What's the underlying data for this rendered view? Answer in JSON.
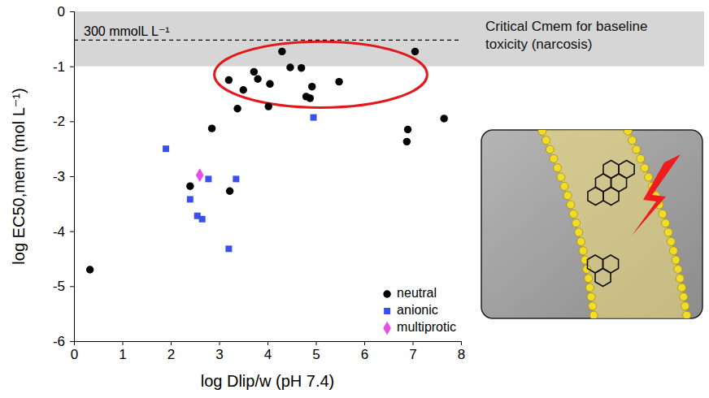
{
  "chart_data": {
    "type": "scatter",
    "x_label": "log Dlip/w (pH 7.4)",
    "y_label": "log EC50,mem (mol L⁻¹)",
    "xlim": [
      0,
      8
    ],
    "xticks": [
      0,
      1,
      2,
      3,
      4,
      5,
      6,
      7,
      8
    ],
    "ylim": [
      -6,
      0
    ],
    "yticks": [
      -6,
      -5,
      -4,
      -3,
      -2,
      -1,
      0
    ],
    "legend": "lower right",
    "series": [
      {
        "name": "neutral",
        "color": "#000000",
        "marker": "circle",
        "x": [
          0.33,
          2.4,
          2.85,
          3.2,
          3.22,
          3.38,
          3.5,
          3.72,
          3.8,
          4.05,
          4.02,
          4.3,
          4.47,
          4.7,
          4.8,
          4.88,
          4.92,
          5.48,
          6.88,
          6.9,
          7.05,
          7.65
        ],
        "values": [
          -4.7,
          -3.18,
          -2.13,
          -1.25,
          -3.27,
          -1.77,
          -1.43,
          -1.1,
          -1.23,
          -1.32,
          -1.73,
          -0.73,
          -1.02,
          -1.03,
          -1.55,
          -1.58,
          -1.37,
          -1.28,
          -2.37,
          -2.15,
          -0.73,
          -1.95
        ]
      },
      {
        "name": "anionic",
        "color": "#3b50e8",
        "marker": "square",
        "x": [
          1.9,
          2.4,
          2.55,
          2.65,
          2.78,
          3.2,
          3.35,
          4.95
        ],
        "values": [
          -2.5,
          -3.42,
          -3.72,
          -3.78,
          -3.05,
          -4.32,
          -3.05,
          -1.93
        ]
      },
      {
        "name": "multiprotic",
        "color": "#e64ce6",
        "marker": "diamond",
        "x": [
          2.6
        ],
        "values": [
          -2.98
        ]
      }
    ],
    "reference_line": {
      "value": -0.523,
      "label": "300 mmolL L⁻¹",
      "line_style": "dashed"
    },
    "band": {
      "range": [
        -1,
        0
      ],
      "label": [
        "Critical Cmem for baseline",
        "toxicity (narcosis)"
      ],
      "color": "#d6d6d6"
    },
    "highlight": {
      "x": [
        2.9,
        7.3
      ],
      "y": [
        -1.75,
        -0.55
      ],
      "color": "#e3181d"
    }
  }
}
